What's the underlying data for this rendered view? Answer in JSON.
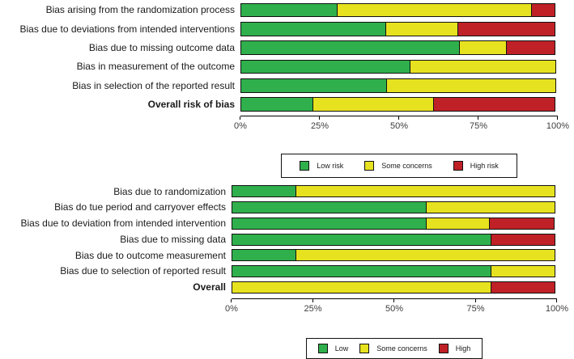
{
  "figure": {
    "background": "#ffffff",
    "description_colors": {
      "low": "#2FB04C",
      "some_concerns": "#E7E21F",
      "high": "#BF2127",
      "bar_outline": "#111111",
      "axis_line": "#000000",
      "tick_text": "#3D3D3D",
      "label_text": "#1A1A1A"
    }
  },
  "chart_data": [
    {
      "id": "top-risk-of-bias-chart",
      "type": "bar",
      "stacked": true,
      "orientation": "horizontal",
      "unit": "percent",
      "xlim": [
        0,
        100
      ],
      "grid": false,
      "x_tick_labels": [
        "0%",
        "25%",
        "50%",
        "75%",
        "100%"
      ],
      "legend_position": "bottom-boxed-centered",
      "categories": [
        "Bias arising from the randomization process",
        "Bias due to deviations from intended interventions",
        "Bias due to missing outcome data",
        "Bias in measurement of the outcome",
        "Bias in selection of the reported result",
        "Overall risk of bias"
      ],
      "bold_categories": [
        "Overall risk of bias"
      ],
      "series": [
        {
          "name": "Low risk",
          "color": "#2FB04C",
          "values": [
            30.8,
            46.2,
            69.2,
            53.8,
            46.2,
            23.1
          ]
        },
        {
          "name": "Some concerns",
          "color": "#E7E21F",
          "values": [
            61.5,
            23.1,
            15.4,
            46.2,
            53.8,
            38.5
          ]
        },
        {
          "name": "High risk",
          "color": "#BF2127",
          "values": [
            7.7,
            30.8,
            15.4,
            0,
            0,
            38.5
          ]
        }
      ]
    },
    {
      "id": "bottom-risk-of-bias-chart",
      "type": "bar",
      "stacked": true,
      "orientation": "horizontal",
      "unit": "percent",
      "xlim": [
        0,
        100
      ],
      "grid": false,
      "x_tick_labels": [
        "0%",
        "25%",
        "50%",
        "75%",
        "100%"
      ],
      "legend_position": "bottom-boxed-centered",
      "categories": [
        "Bias due to randomization",
        "Bias do tue period and carryover effects",
        "Bias due to deviation from intended intervention",
        "Bias due to missing data",
        "Bias due to outcome measurement",
        "Bias due to selection of reported result",
        "Overall"
      ],
      "bold_categories": [
        "Overall"
      ],
      "series": [
        {
          "name": "Low",
          "color": "#2FB04C",
          "values": [
            20,
            60,
            60,
            80,
            20,
            80,
            0
          ]
        },
        {
          "name": "Some concerns",
          "color": "#E7E21F",
          "values": [
            80,
            40,
            20,
            0,
            80,
            20,
            80
          ]
        },
        {
          "name": "High",
          "color": "#BF2127",
          "values": [
            0,
            0,
            20,
            20,
            0,
            0,
            20
          ]
        }
      ]
    }
  ]
}
